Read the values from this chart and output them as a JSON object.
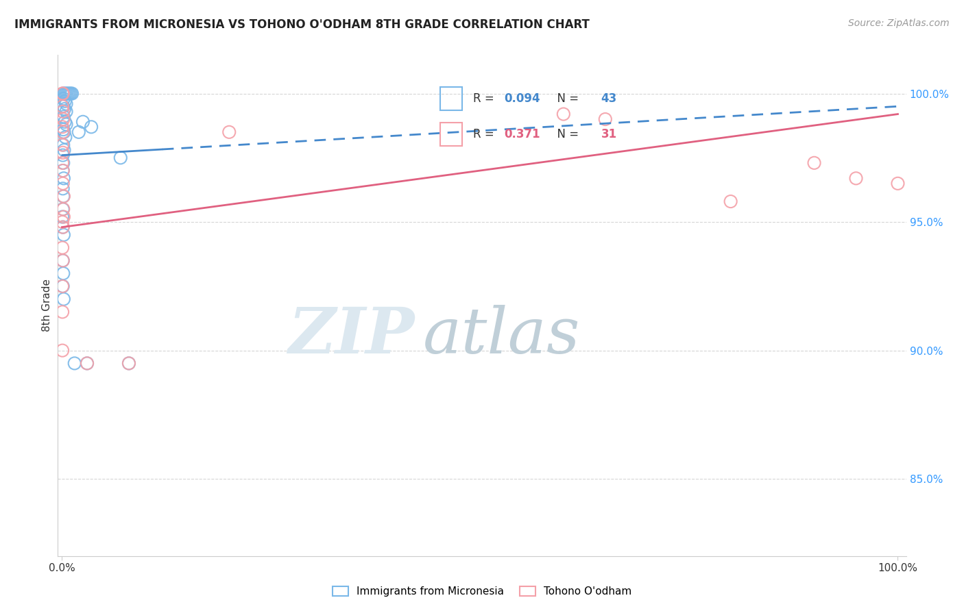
{
  "title": "IMMIGRANTS FROM MICRONESIA VS TOHONO O'ODHAM 8TH GRADE CORRELATION CHART",
  "source": "Source: ZipAtlas.com",
  "ylabel": "8th Grade",
  "y_min": 82.0,
  "y_max": 101.5,
  "x_min": -0.5,
  "x_max": 101.0,
  "legend_label1": "Immigrants from Micronesia",
  "legend_label2": "Tohono O'odham",
  "R1": 0.094,
  "N1": 43,
  "R2": 0.371,
  "N2": 31,
  "blue_color": "#7ab8e8",
  "pink_color": "#f4a0a8",
  "blue_line_color": "#4488cc",
  "pink_line_color": "#e06080",
  "blue_line_x": [
    0,
    100
  ],
  "blue_line_y": [
    97.6,
    99.5
  ],
  "blue_solid_end": 12,
  "pink_line_x": [
    0,
    100
  ],
  "pink_line_y": [
    94.8,
    99.2
  ],
  "blue_scatter": [
    [
      0.15,
      100.0
    ],
    [
      0.3,
      100.0
    ],
    [
      0.45,
      100.0
    ],
    [
      0.6,
      100.0
    ],
    [
      0.75,
      100.0
    ],
    [
      0.9,
      100.0
    ],
    [
      1.05,
      100.0
    ],
    [
      1.2,
      100.0
    ],
    [
      0.2,
      99.8
    ],
    [
      0.35,
      99.7
    ],
    [
      0.5,
      99.6
    ],
    [
      0.15,
      99.5
    ],
    [
      0.3,
      99.4
    ],
    [
      0.5,
      99.3
    ],
    [
      0.2,
      99.1
    ],
    [
      0.35,
      98.9
    ],
    [
      0.5,
      98.8
    ],
    [
      0.15,
      98.6
    ],
    [
      0.25,
      98.5
    ],
    [
      0.4,
      98.3
    ],
    [
      0.15,
      98.0
    ],
    [
      0.25,
      97.8
    ],
    [
      0.1,
      97.6
    ],
    [
      0.15,
      97.3
    ],
    [
      0.1,
      97.0
    ],
    [
      0.2,
      96.7
    ],
    [
      0.1,
      96.3
    ],
    [
      0.15,
      96.0
    ],
    [
      2.5,
      98.9
    ],
    [
      3.5,
      98.7
    ],
    [
      7.0,
      97.5
    ],
    [
      2.0,
      98.5
    ],
    [
      1.5,
      89.5
    ],
    [
      3.0,
      89.5
    ],
    [
      8.0,
      89.5
    ],
    [
      0.1,
      95.5
    ],
    [
      0.05,
      95.2
    ],
    [
      0.1,
      94.8
    ],
    [
      0.2,
      94.5
    ],
    [
      0.1,
      93.5
    ],
    [
      0.15,
      93.0
    ],
    [
      0.1,
      92.5
    ],
    [
      0.2,
      92.0
    ]
  ],
  "pink_scatter": [
    [
      0.05,
      100.0
    ],
    [
      0.1,
      100.0
    ],
    [
      0.05,
      99.5
    ],
    [
      0.1,
      99.3
    ],
    [
      0.15,
      99.0
    ],
    [
      0.05,
      98.7
    ],
    [
      0.1,
      98.5
    ],
    [
      0.05,
      98.0
    ],
    [
      0.1,
      97.7
    ],
    [
      0.05,
      97.3
    ],
    [
      0.1,
      97.0
    ],
    [
      0.1,
      96.5
    ],
    [
      0.2,
      96.0
    ],
    [
      0.15,
      95.5
    ],
    [
      0.2,
      95.2
    ],
    [
      0.05,
      95.0
    ],
    [
      0.1,
      94.8
    ],
    [
      0.05,
      94.0
    ],
    [
      0.1,
      93.5
    ],
    [
      0.05,
      92.5
    ],
    [
      0.05,
      91.5
    ],
    [
      0.05,
      90.0
    ],
    [
      3.0,
      89.5
    ],
    [
      8.0,
      89.5
    ],
    [
      20.0,
      98.5
    ],
    [
      60.0,
      99.2
    ],
    [
      65.0,
      99.0
    ],
    [
      80.0,
      95.8
    ],
    [
      90.0,
      97.3
    ],
    [
      95.0,
      96.7
    ],
    [
      100.0,
      96.5
    ]
  ],
  "background_color": "#ffffff",
  "grid_color": "#cccccc",
  "y_ticks": [
    85.0,
    90.0,
    95.0,
    100.0
  ],
  "x_ticks": [
    0,
    100
  ],
  "watermark_zip": "ZIP",
  "watermark_atlas": "atlas",
  "watermark_color": "#dce8f0"
}
